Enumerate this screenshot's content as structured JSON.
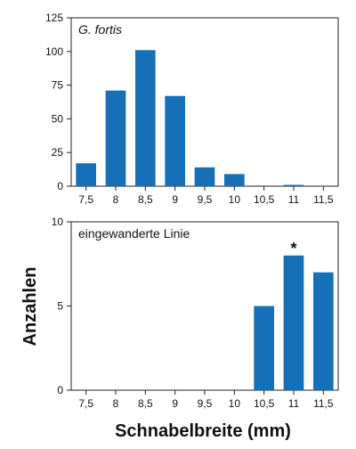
{
  "colors": {
    "bar": "#1570b7",
    "axis": "#222222"
  },
  "figure": {
    "xlabel": "Schnabelbreite (mm)",
    "ylabel": "Anzahlen"
  },
  "chart_data": [
    {
      "type": "bar",
      "panel_label": "G. fortis",
      "panel_label_style": "italic",
      "categories": [
        "7,5",
        "8",
        "8,5",
        "9",
        "9,5",
        "10",
        "10,5",
        "11",
        "11,5"
      ],
      "values": [
        17,
        71,
        101,
        67,
        14,
        9,
        0,
        1,
        0
      ],
      "ylim": [
        0,
        125
      ],
      "yticks": [
        "0",
        "25",
        "50",
        "75",
        "100",
        "125"
      ],
      "ytick_values": [
        0,
        25,
        50,
        75,
        100,
        125
      ]
    },
    {
      "type": "bar",
      "panel_label": "eingewanderte Linie",
      "panel_label_style": "normal",
      "categories": [
        "7,5",
        "8",
        "8,5",
        "9",
        "9,5",
        "10",
        "10,5",
        "11",
        "11,5"
      ],
      "values": [
        0,
        0,
        0,
        0,
        0,
        0,
        5,
        8,
        7
      ],
      "ylim": [
        0,
        10
      ],
      "yticks": [
        "0",
        "5",
        "10"
      ],
      "ytick_values": [
        0,
        5,
        10
      ],
      "annotation": {
        "category": "11",
        "text": "*"
      }
    }
  ]
}
